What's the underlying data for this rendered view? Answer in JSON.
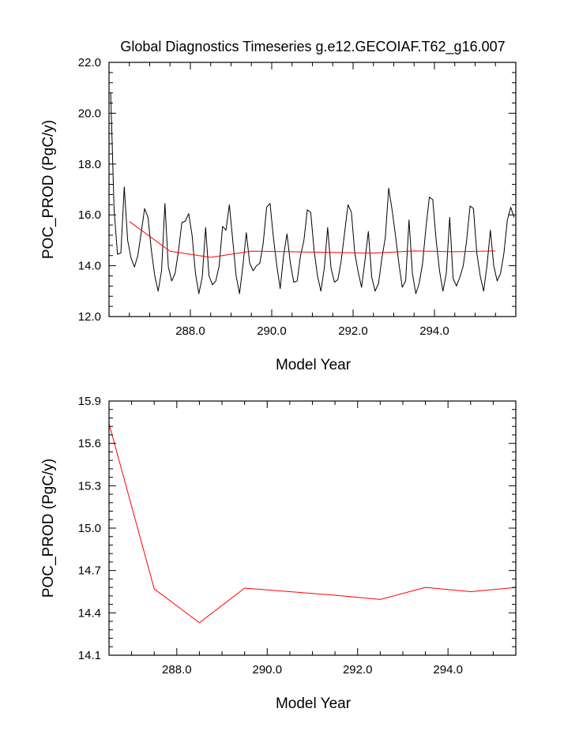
{
  "title": "Global Diagnostics Timeseries g.e12.GECOIAF.T62_g16.007",
  "chart_data": [
    {
      "type": "line",
      "xlabel": "Model Year",
      "ylabel": "POC_PROD (PgC/y)",
      "xlim": [
        286.0,
        296.0
      ],
      "ylim": [
        12.0,
        22.0
      ],
      "xticks": [
        "288.0",
        "290.0",
        "292.0",
        "294.0"
      ],
      "yticks": [
        "12.0",
        "14.0",
        "16.0",
        "18.0",
        "20.0",
        "22.0"
      ],
      "series": [
        {
          "color": "#000000",
          "x": [
            286.0417,
            286.125,
            286.2083,
            286.2917,
            286.375,
            286.4583,
            286.5417,
            286.625,
            286.7083,
            286.7917,
            286.875,
            286.9583,
            287.0417,
            287.125,
            287.2083,
            287.2917,
            287.375,
            287.4583,
            287.5417,
            287.625,
            287.7083,
            287.7917,
            287.875,
            287.9583,
            288.0417,
            288.125,
            288.2083,
            288.2917,
            288.375,
            288.4583,
            288.5417,
            288.625,
            288.7083,
            288.7917,
            288.875,
            288.9583,
            289.0417,
            289.125,
            289.2083,
            289.2917,
            289.375,
            289.4583,
            289.5417,
            289.625,
            289.7083,
            289.7917,
            289.875,
            289.9583,
            290.0417,
            290.125,
            290.2083,
            290.2917,
            290.375,
            290.4583,
            290.5417,
            290.625,
            290.7083,
            290.7917,
            290.875,
            290.9583,
            291.0417,
            291.125,
            291.2083,
            291.2917,
            291.375,
            291.4583,
            291.5417,
            291.625,
            291.7083,
            291.7917,
            291.875,
            291.9583,
            292.0417,
            292.125,
            292.2083,
            292.2917,
            292.375,
            292.4583,
            292.5417,
            292.625,
            292.7083,
            292.7917,
            292.875,
            292.9583,
            293.0417,
            293.125,
            293.2083,
            293.2917,
            293.375,
            293.4583,
            293.5417,
            293.625,
            293.7083,
            293.7917,
            293.875,
            293.9583,
            294.0417,
            294.125,
            294.2083,
            294.2917,
            294.375,
            294.4583,
            294.5417,
            294.625,
            294.7083,
            294.7917,
            294.875,
            294.9583,
            295.0417,
            295.125,
            295.2083,
            295.2917,
            295.375,
            295.4583,
            295.5417,
            295.625,
            295.7083,
            295.7917,
            295.875,
            295.9583
          ],
          "y": [
            20.8,
            16.2,
            14.45,
            14.5,
            17.1,
            15.0,
            14.3,
            13.95,
            14.4,
            15.3,
            16.25,
            15.9,
            14.6,
            13.6,
            13.0,
            13.8,
            16.45,
            13.95,
            13.4,
            13.7,
            14.6,
            15.7,
            15.75,
            16.05,
            15.2,
            13.7,
            12.9,
            13.55,
            15.5,
            13.6,
            13.25,
            13.4,
            14.0,
            15.55,
            15.4,
            16.4,
            15.0,
            13.6,
            12.9,
            14.0,
            15.3,
            14.1,
            13.8,
            14.0,
            14.1,
            14.9,
            16.3,
            16.45,
            15.1,
            14.0,
            13.1,
            14.4,
            15.25,
            14.1,
            13.35,
            13.4,
            14.4,
            15.0,
            16.2,
            16.1,
            14.6,
            13.6,
            13.0,
            13.9,
            15.5,
            13.9,
            13.35,
            13.45,
            14.2,
            15.3,
            16.4,
            16.1,
            14.5,
            13.75,
            13.15,
            14.2,
            15.35,
            13.55,
            13.0,
            13.3,
            14.3,
            15.1,
            17.05,
            16.2,
            15.2,
            14.1,
            13.15,
            13.4,
            15.8,
            13.7,
            12.9,
            13.3,
            14.1,
            15.5,
            16.7,
            16.6,
            15.0,
            13.8,
            13.0,
            13.7,
            15.9,
            13.5,
            13.2,
            13.55,
            14.0,
            15.0,
            16.35,
            16.25,
            14.5,
            13.6,
            13.0,
            14.0,
            15.4,
            14.0,
            13.4,
            13.7,
            14.5,
            15.8,
            16.3,
            15.9
          ]
        },
        {
          "color": "#ff0000",
          "x": [
            286.5,
            287.5,
            288.5,
            289.5,
            290.5,
            291.5,
            292.5,
            293.5,
            294.5,
            295.5
          ],
          "y": [
            15.74,
            14.57,
            14.33,
            14.575,
            14.55,
            14.525,
            14.495,
            14.58,
            14.55,
            14.58
          ]
        }
      ]
    },
    {
      "type": "line",
      "xlabel": "Model Year",
      "ylabel": "POC_PROD (PgC/y)",
      "xlim": [
        286.5,
        295.5
      ],
      "ylim": [
        14.1,
        15.9
      ],
      "xticks": [
        "288.0",
        "290.0",
        "292.0",
        "294.0"
      ],
      "yticks": [
        "14.1",
        "14.4",
        "14.7",
        "15.0",
        "15.3",
        "15.6",
        "15.9"
      ],
      "series": [
        {
          "color": "#ff0000",
          "x": [
            286.5,
            287.5,
            288.5,
            289.5,
            290.5,
            291.5,
            292.5,
            293.5,
            294.5,
            295.5
          ],
          "y": [
            15.74,
            14.57,
            14.33,
            14.575,
            14.55,
            14.525,
            14.495,
            14.58,
            14.55,
            14.58
          ]
        }
      ]
    }
  ]
}
